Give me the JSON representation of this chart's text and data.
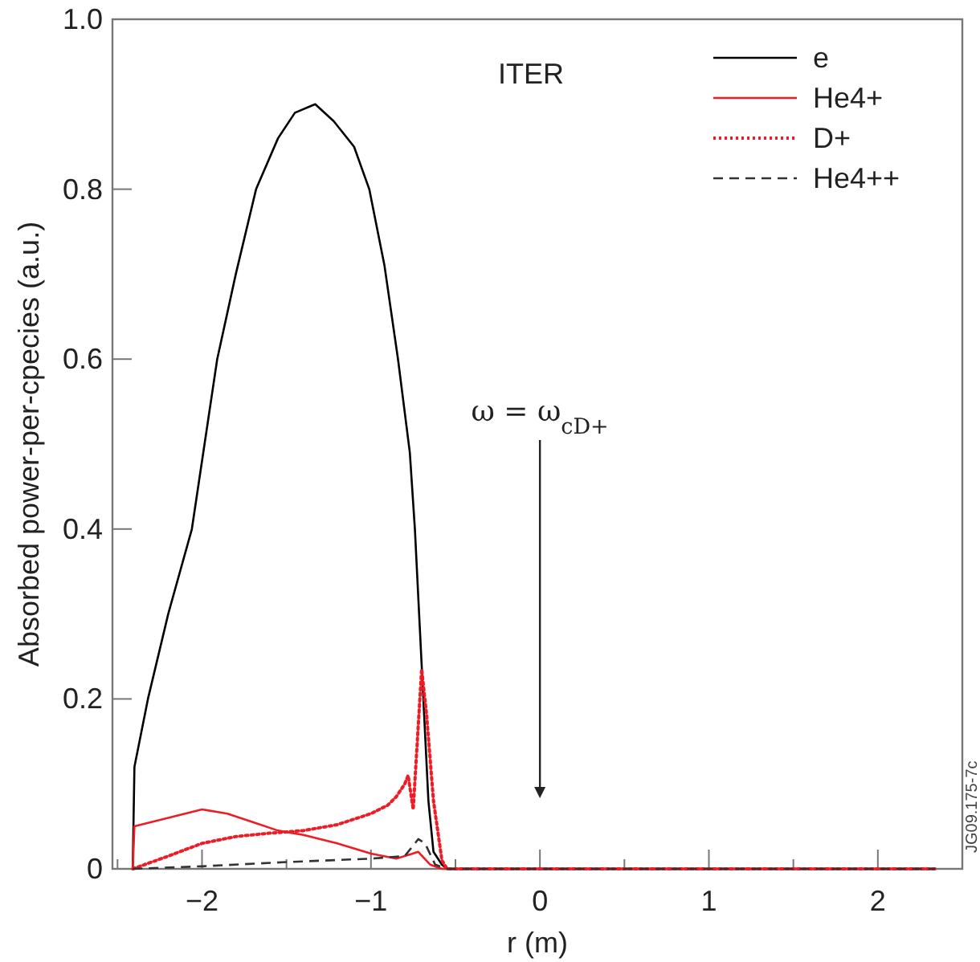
{
  "chart_data": {
    "type": "line",
    "xlabel": "r (m)",
    "ylabel": "Absorbed power-per-cpecies (a.u.)",
    "annotations": [
      "ITER",
      "JG09.175-7c"
    ],
    "ref_lines": [
      {
        "axis": "x",
        "value": 0,
        "label": "ω = ω$_{cD+}$",
        "color": "#222222"
      }
    ],
    "xlim": [
      -2.53,
      2.5
    ],
    "ylim": [
      0,
      1
    ],
    "xticks": [
      {
        "value": -2.5,
        "label": null
      },
      {
        "value": -2,
        "label": "−2"
      },
      {
        "value": -1.5,
        "label": null
      },
      {
        "value": -1,
        "label": "−1"
      },
      {
        "value": -0.5,
        "label": null
      },
      0,
      {
        "value": 0.5,
        "label": null
      },
      1,
      {
        "value": 1.5,
        "label": null
      },
      2
    ],
    "yticks": [
      0,
      0.2,
      0.4,
      0.6,
      0.8,
      {
        "value": 1,
        "label": "1.0"
      }
    ],
    "grid": false,
    "legend": "top right",
    "series": [
      {
        "name": "e",
        "color": "#000000",
        "line_style": "solid",
        "x": [
          -2.41,
          -2.4,
          -2.32,
          -2.2,
          -2.06,
          -1.91,
          -1.8,
          -1.68,
          -1.55,
          -1.45,
          -1.33,
          -1.22,
          -1.1,
          -1.01,
          -0.92,
          -0.84,
          -0.77,
          -0.74,
          -0.69,
          -0.66,
          -0.63,
          -0.58,
          -0.55,
          0,
          1,
          2,
          2.34
        ],
        "values": [
          0,
          0.12,
          0.2,
          0.3,
          0.4,
          0.6,
          0.7,
          0.8,
          0.86,
          0.89,
          0.9,
          0.88,
          0.85,
          0.8,
          0.71,
          0.6,
          0.49,
          0.4,
          0.2,
          0.08,
          0.02,
          0.005,
          0,
          0,
          0,
          0,
          0
        ]
      },
      {
        "name": "He4+",
        "color": "#ee1c25",
        "line_style": "solid",
        "x": [
          -2.41,
          -2.4,
          -2.2,
          -2.0,
          -1.85,
          -1.7,
          -1.55,
          -1.4,
          -1.2,
          -1.0,
          -0.85,
          -0.72,
          -0.65,
          -0.58,
          -0.55,
          0,
          1,
          2,
          2.34
        ],
        "values": [
          0,
          0.05,
          0.06,
          0.07,
          0.065,
          0.055,
          0.045,
          0.04,
          0.03,
          0.018,
          0.012,
          0.02,
          0.005,
          0,
          0,
          0,
          0,
          0,
          0
        ]
      },
      {
        "name": "D+",
        "color": "#ee1c25",
        "line_style": "dotted",
        "x": [
          -2.41,
          -2.2,
          -2.0,
          -1.8,
          -1.6,
          -1.4,
          -1.2,
          -1.0,
          -0.9,
          -0.85,
          -0.8,
          -0.78,
          -0.75,
          -0.7,
          -0.67,
          -0.63,
          -0.58,
          -0.55,
          0,
          1,
          2,
          2.34
        ],
        "values": [
          0,
          0.015,
          0.03,
          0.038,
          0.042,
          0.045,
          0.052,
          0.065,
          0.075,
          0.085,
          0.1,
          0.11,
          0.07,
          0.235,
          0.18,
          0.08,
          0.01,
          0,
          0,
          0,
          0,
          0
        ]
      },
      {
        "name": "He4++",
        "color": "#333333",
        "line_style": "dashed",
        "x": [
          -2.41,
          -2.0,
          -1.5,
          -1.0,
          -0.8,
          -0.72,
          -0.68,
          -0.62,
          -0.55,
          0,
          1,
          2,
          2.34
        ],
        "values": [
          0,
          0.003,
          0.008,
          0.012,
          0.015,
          0.035,
          0.03,
          0.005,
          0,
          0,
          0,
          0,
          0
        ]
      }
    ]
  }
}
